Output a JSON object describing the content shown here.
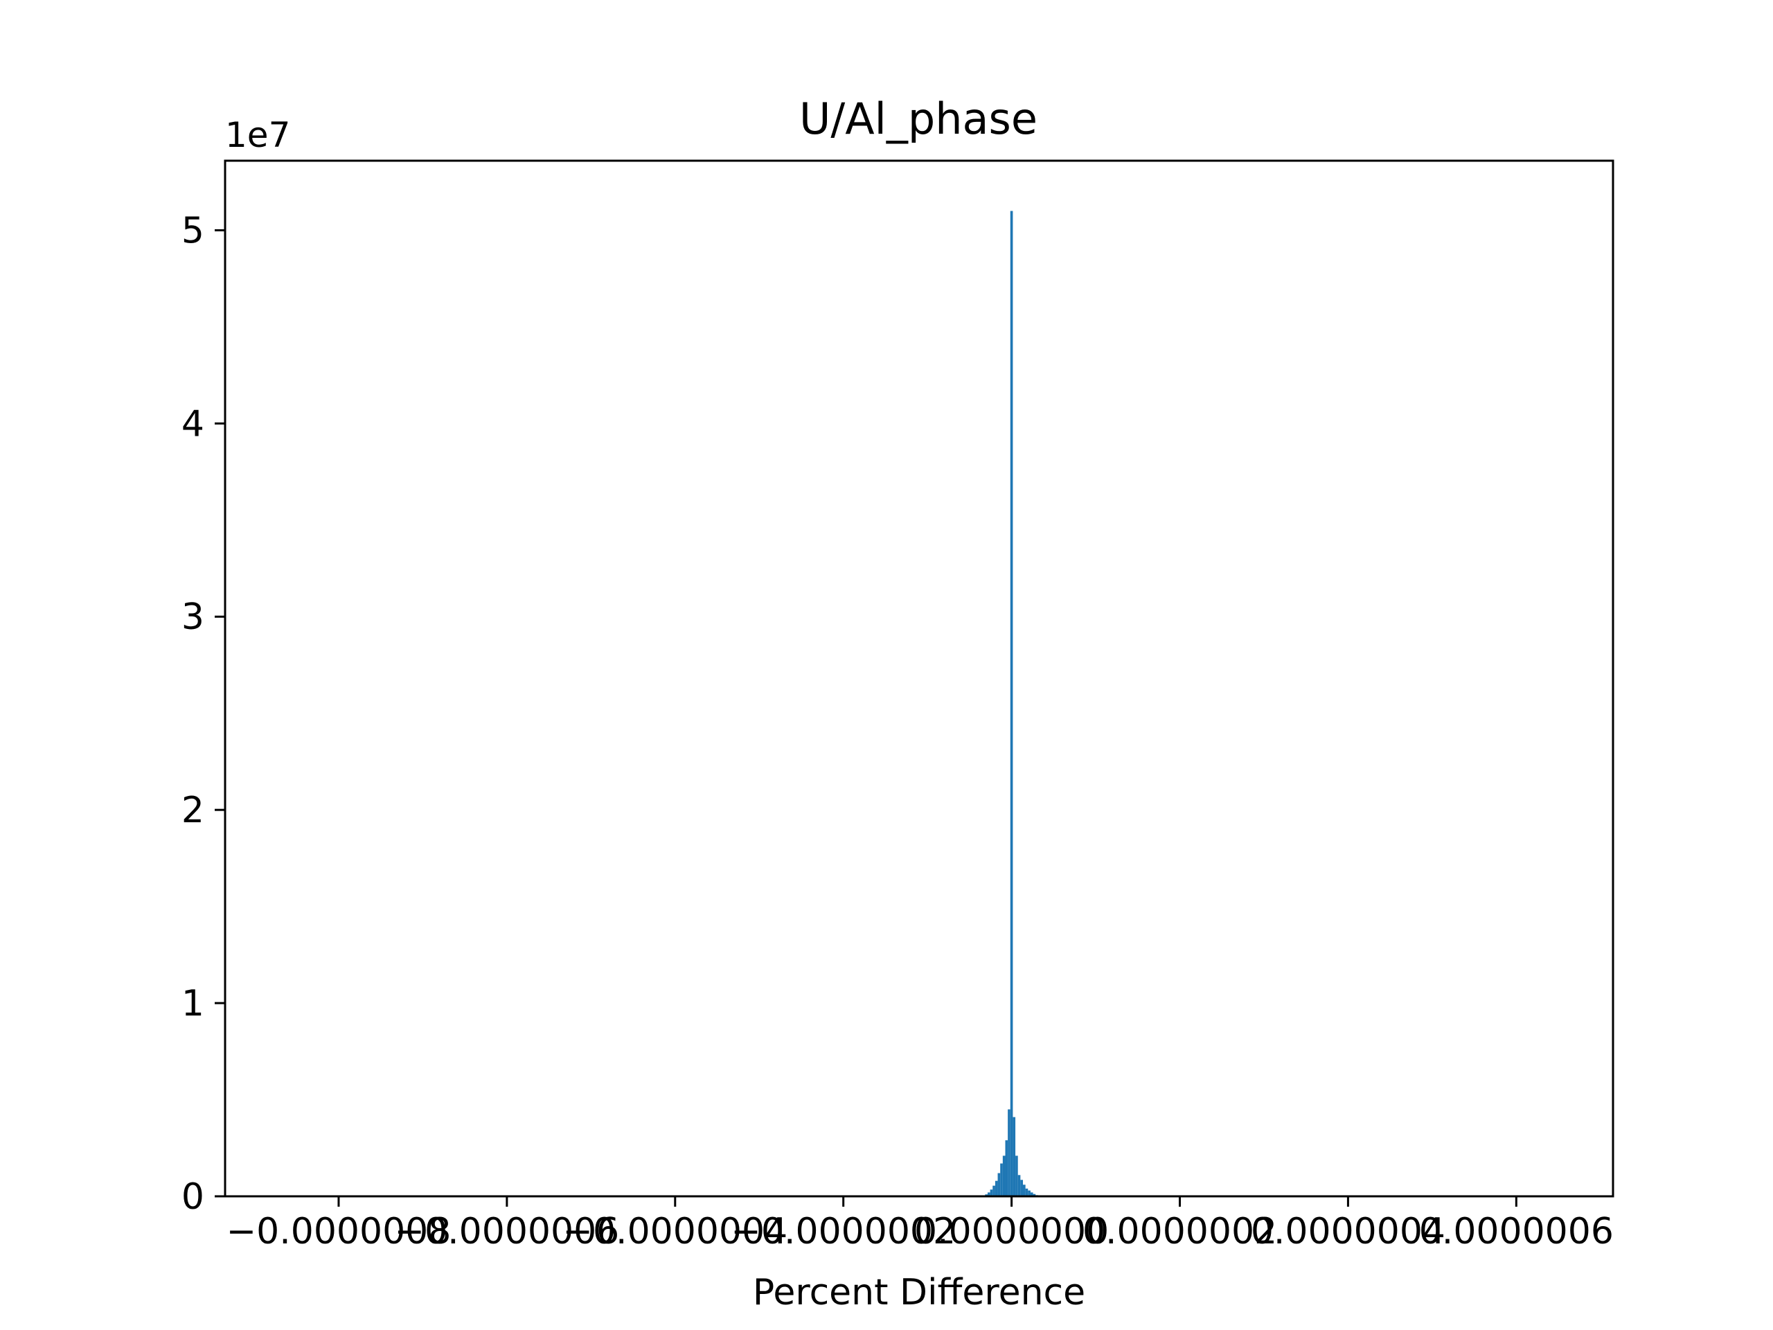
{
  "chart_data": {
    "type": "bar",
    "title": "U/Al_phase",
    "xlabel": "Percent Difference",
    "ylabel": "",
    "y_offset_label": "1e7",
    "x_ticks": [
      {
        "value": -8e-07,
        "label": "−0.0000008"
      },
      {
        "value": -6e-07,
        "label": "−0.0000006"
      },
      {
        "value": -4e-07,
        "label": "−0.0000004"
      },
      {
        "value": -2e-07,
        "label": "−0.0000002"
      },
      {
        "value": 0.0,
        "label": "0.0000000"
      },
      {
        "value": 2e-07,
        "label": "0.0000002"
      },
      {
        "value": 4e-07,
        "label": "0.0000004"
      },
      {
        "value": 6e-07,
        "label": "0.0000006"
      }
    ],
    "y_ticks": [
      {
        "value": 0,
        "label": "0"
      },
      {
        "value": 10000000,
        "label": "1"
      },
      {
        "value": 20000000,
        "label": "2"
      },
      {
        "value": 30000000,
        "label": "3"
      },
      {
        "value": 40000000,
        "label": "4"
      },
      {
        "value": 50000000,
        "label": "5"
      }
    ],
    "xlim": [
      -9.35e-07,
      7.15e-07
    ],
    "ylim": [
      0,
      53600000
    ],
    "bin_width": 3e-09,
    "bar_color": "#1f77b4",
    "bins": [
      {
        "x": -3e-08,
        "value": 100000
      },
      {
        "x": -2.7e-08,
        "value": 200000
      },
      {
        "x": -2.4e-08,
        "value": 350000
      },
      {
        "x": -2.1e-08,
        "value": 550000
      },
      {
        "x": -1.8e-08,
        "value": 800000
      },
      {
        "x": -1.5e-08,
        "value": 1200000
      },
      {
        "x": -1.2e-08,
        "value": 1700000
      },
      {
        "x": -9e-09,
        "value": 2100000
      },
      {
        "x": -6e-09,
        "value": 2900000
      },
      {
        "x": -3e-09,
        "value": 4500000
      },
      {
        "x": 0.0,
        "value": 51000000
      },
      {
        "x": 3e-09,
        "value": 4100000
      },
      {
        "x": 6e-09,
        "value": 2100000
      },
      {
        "x": 9e-09,
        "value": 1100000
      },
      {
        "x": 1.2e-08,
        "value": 850000
      },
      {
        "x": 1.5e-08,
        "value": 600000
      },
      {
        "x": 1.8e-08,
        "value": 400000
      },
      {
        "x": 2.1e-08,
        "value": 300000
      },
      {
        "x": 2.4e-08,
        "value": 200000
      },
      {
        "x": 2.7e-08,
        "value": 120000
      },
      {
        "x": 3e-08,
        "value": 60000
      }
    ]
  }
}
